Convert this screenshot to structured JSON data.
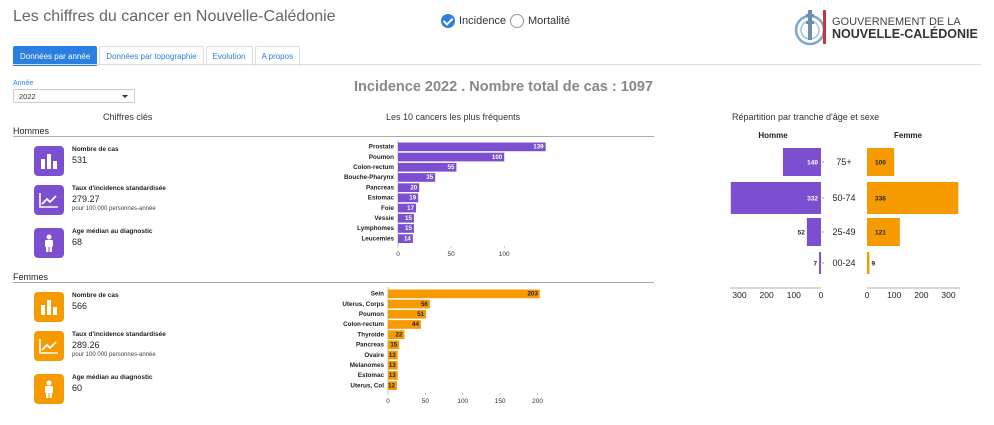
{
  "title": "Les chiffres du cancer en Nouvelle-Calédonie",
  "radio": {
    "incidence": "Incidence",
    "mortalite": "Mortalité"
  },
  "logo": {
    "line1": "GOUVERNEMENT DE LA",
    "line2": "NOUVELLE-CALÉDONIE"
  },
  "tabs": [
    "Données par année",
    "Données par topographie",
    "Evolution",
    "A propos"
  ],
  "year": {
    "label": "Année",
    "value": "2022"
  },
  "headline": "Incidence 2022 . Nombre total de cas : 1097",
  "sections": {
    "key_figures": "Chiffres clés",
    "top10": "Les 10 cancers les plus fréquents",
    "age": "Répartition par tranche d'âge et sexe"
  },
  "men": {
    "title": "Hommes",
    "cases_label": "Nombre de cas",
    "cases": "531",
    "rate_label": "Taux d'incidence standardisée",
    "rate": "279.27",
    "rate_sub": "pour 100 000 personnes-année",
    "age_label": "Age médian au diagnostic",
    "age": "68"
  },
  "women": {
    "title": "Femmes",
    "cases_label": "Nombre de cas",
    "cases": "566",
    "rate_label": "Taux d'incidence standardisée",
    "rate": "289.26",
    "rate_sub": "pour 100 000 personnes-année",
    "age_label": "Age médian au diagnostic",
    "age": "60"
  },
  "colors": {
    "men": "#7b4fd0",
    "women": "#f59b00",
    "accent": "#2a7fe0"
  },
  "chart_data": [
    {
      "type": "bar",
      "orientation": "horizontal",
      "title": "Les 10 cancers les plus fréquents — Hommes",
      "categories": [
        "Prostate",
        "Poumon",
        "Colon-rectum",
        "Bouche-Pharynx",
        "Pancreas",
        "Estomac",
        "Foie",
        "Vessie",
        "Lymphomes",
        "Leucemies"
      ],
      "values": [
        139,
        100,
        55,
        35,
        20,
        19,
        17,
        15,
        15,
        14
      ],
      "xticks": [
        0,
        50,
        100
      ],
      "xlim": [
        0,
        145
      ]
    },
    {
      "type": "bar",
      "orientation": "horizontal",
      "title": "Les 10 cancers les plus fréquents — Femmes",
      "categories": [
        "Sein",
        "Uterus, Corps",
        "Poumon",
        "Colon-rectum",
        "Thyroide",
        "Pancreas",
        "Ovaire",
        "Melanomes",
        "Estomac",
        "Uterus, Col"
      ],
      "values": [
        203,
        56,
        51,
        44,
        22,
        15,
        13,
        13,
        13,
        12
      ],
      "xticks": [
        0,
        50,
        100,
        150,
        200
      ],
      "xlim": [
        0,
        210
      ]
    },
    {
      "type": "bar",
      "orientation": "horizontal",
      "title": "Répartition par tranche d'âge et sexe",
      "categories": [
        "75+",
        "50-74",
        "25-49",
        "00-24"
      ],
      "series": [
        {
          "name": "Homme",
          "values": [
            140,
            332,
            52,
            7
          ]
        },
        {
          "name": "Femme",
          "values": [
            100,
            336,
            121,
            9
          ]
        }
      ],
      "xticks_left": [
        300,
        200,
        100,
        0
      ],
      "xticks_right": [
        0,
        100,
        200,
        300
      ],
      "xlim": [
        0,
        340
      ]
    }
  ]
}
